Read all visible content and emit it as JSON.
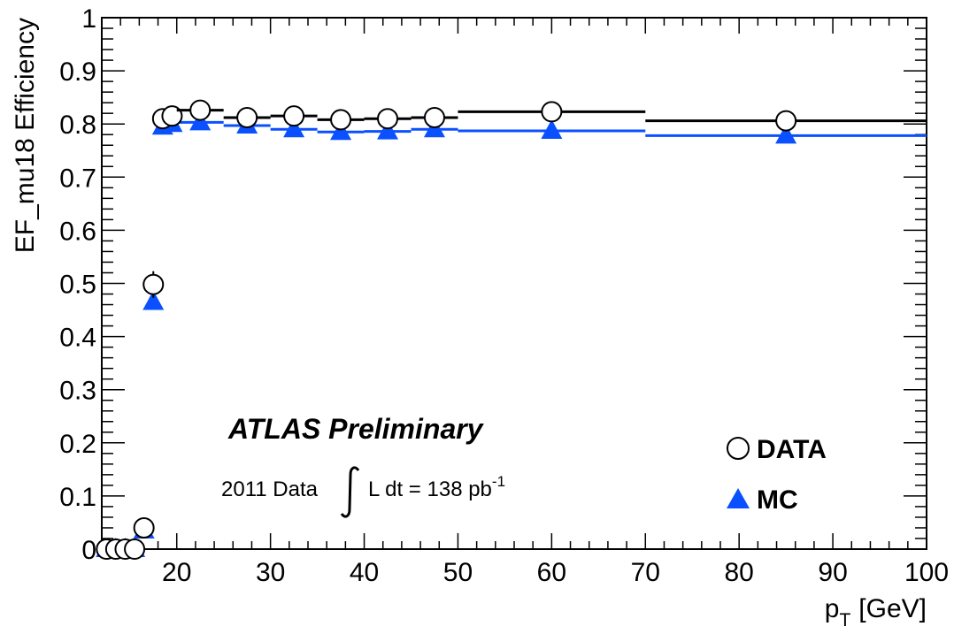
{
  "chart_data": {
    "type": "scatter",
    "xlabel": "p",
    "xlabel_sub": "T",
    "xlabel_unit": "[GeV]",
    "ylabel": "EF_mu18 Efficiency",
    "xlim": [
      12,
      100
    ],
    "ylim": [
      0,
      1
    ],
    "x_ticks": [
      20,
      30,
      40,
      50,
      60,
      70,
      80,
      90,
      100
    ],
    "y_ticks": [
      0,
      0.1,
      0.2,
      0.3,
      0.4,
      0.5,
      0.6,
      0.7,
      0.8,
      0.9,
      1
    ],
    "x_tick_labels": [
      "20",
      "30",
      "40",
      "50",
      "60",
      "70",
      "80",
      "90",
      "100"
    ],
    "y_tick_labels": [
      "0",
      "0.1",
      "0.2",
      "0.3",
      "0.4",
      "0.5",
      "0.6",
      "0.7",
      "0.8",
      "0.9",
      "1"
    ],
    "grid": false,
    "legend_position": "bottom-right",
    "annotations": {
      "experiment": "ATLAS Preliminary",
      "data_label": "2011 Data",
      "lumi_expr": "L dt = 138 pb",
      "lumi_exp": "-1"
    },
    "series": [
      {
        "name": "DATA",
        "marker": "open-circle",
        "color": "#000000",
        "x": [
          12.5,
          13.5,
          14.5,
          15.5,
          16.5,
          17.5,
          18.5,
          19.5,
          22.5,
          27.5,
          32.5,
          37.5,
          42.5,
          47.5,
          60.0,
          85.0
        ],
        "y": [
          0.0,
          0.0,
          0.0,
          0.0,
          0.04,
          0.498,
          0.81,
          0.815,
          0.826,
          0.812,
          0.815,
          0.808,
          0.81,
          0.812,
          0.823,
          0.806
        ],
        "x_lo": [
          12,
          13,
          14,
          15,
          16,
          17,
          18,
          19,
          20,
          25,
          30,
          35,
          40,
          45,
          50,
          70
        ],
        "x_hi": [
          13,
          14,
          15,
          16,
          17,
          18,
          19,
          20,
          25,
          30,
          35,
          40,
          45,
          50,
          70,
          100
        ],
        "y_err": [
          0.0,
          0.0,
          0.0,
          0.0,
          0.008,
          0.025,
          0.012,
          0.012,
          0.006,
          0.006,
          0.006,
          0.006,
          0.006,
          0.006,
          0.005,
          0.006
        ]
      },
      {
        "name": "MC",
        "marker": "filled-triangle",
        "color": "#0a50ff",
        "x": [
          12.5,
          13.5,
          14.5,
          15.5,
          16.5,
          17.5,
          18.5,
          19.5,
          22.5,
          27.5,
          32.5,
          37.5,
          42.5,
          47.5,
          60.0,
          85.0
        ],
        "y": [
          0.0,
          0.0,
          0.0,
          0.0,
          0.035,
          0.465,
          0.795,
          0.8,
          0.803,
          0.797,
          0.79,
          0.785,
          0.786,
          0.79,
          0.787,
          0.778
        ],
        "x_lo": [
          12,
          13,
          14,
          15,
          16,
          17,
          18,
          19,
          20,
          25,
          30,
          35,
          40,
          45,
          50,
          70
        ],
        "x_hi": [
          13,
          14,
          15,
          16,
          17,
          18,
          19,
          20,
          25,
          30,
          35,
          40,
          45,
          50,
          70,
          100
        ],
        "y_err": [
          0,
          0,
          0,
          0,
          0,
          0,
          0,
          0,
          0,
          0,
          0,
          0,
          0,
          0,
          0,
          0
        ]
      }
    ]
  }
}
